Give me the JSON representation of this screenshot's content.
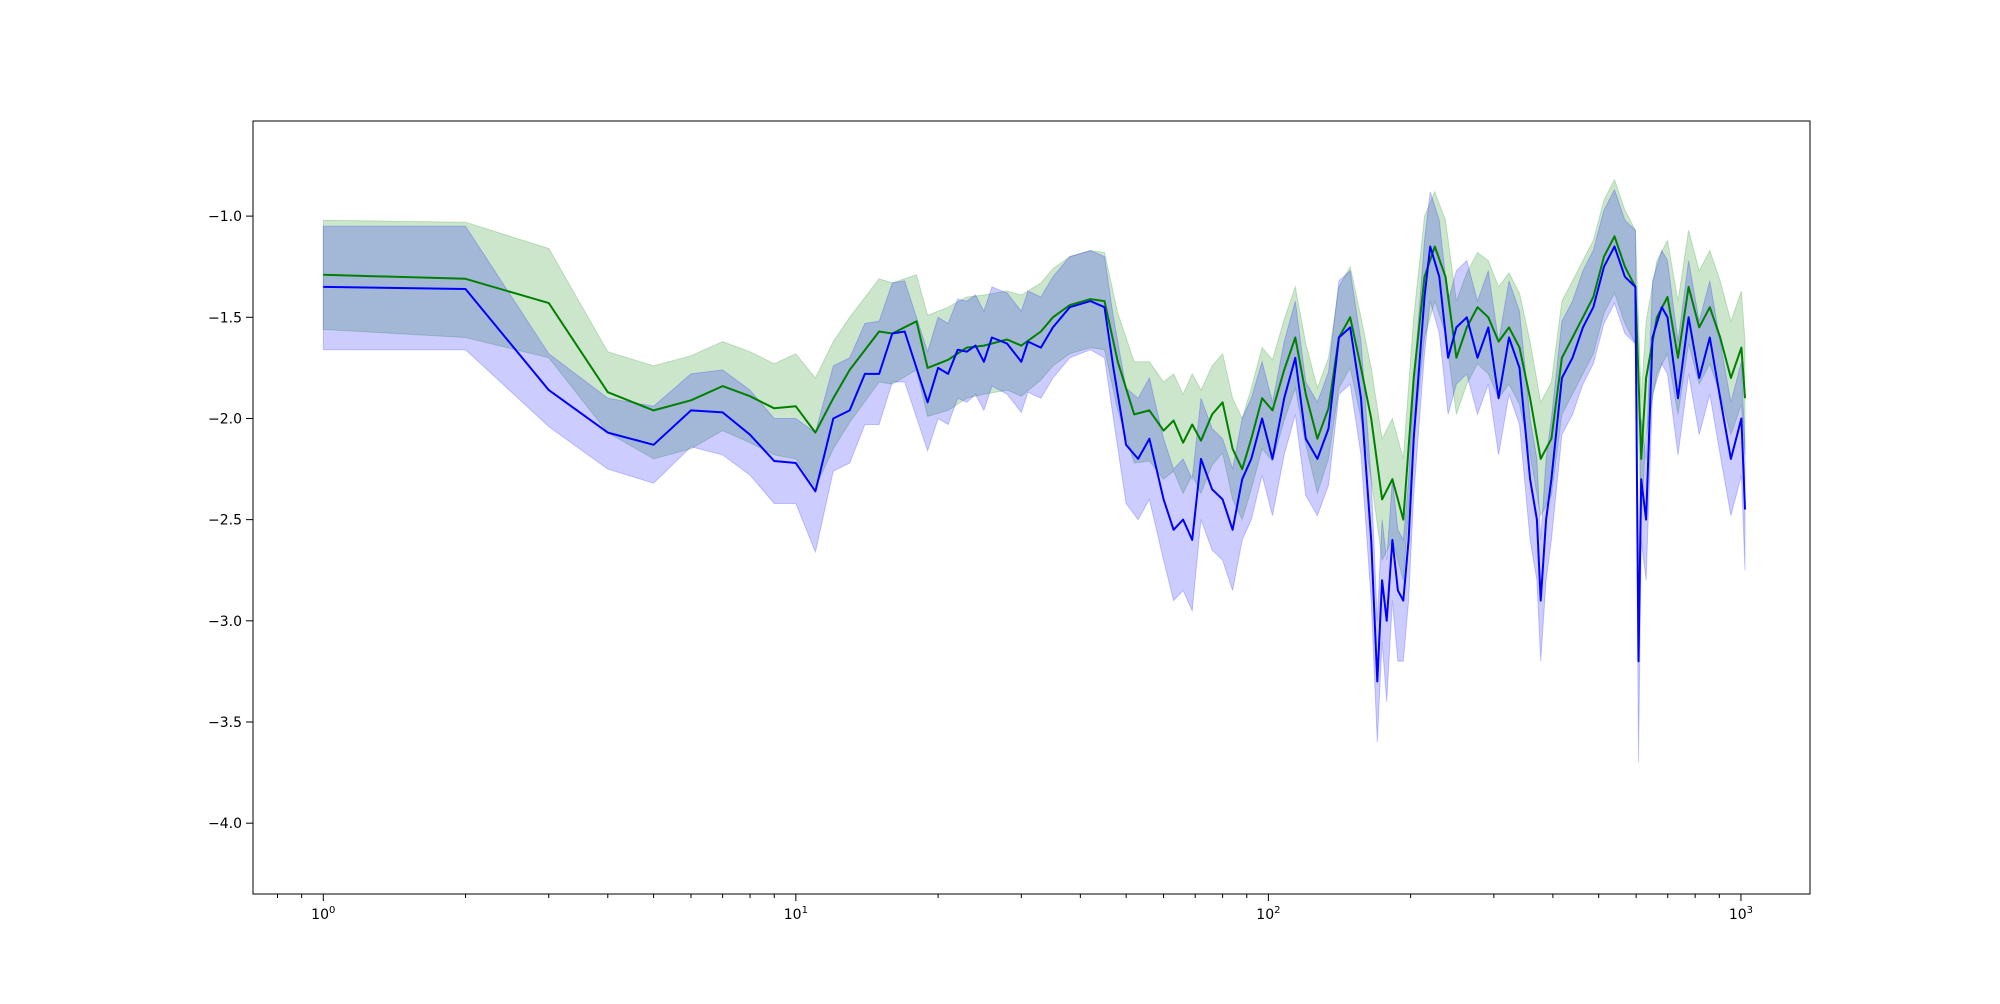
{
  "chart_data": {
    "type": "line",
    "title": "",
    "xlabel": "",
    "ylabel": "",
    "xscale": "log",
    "xlim": [
      0.71,
      1400
    ],
    "ylim": [
      -4.35,
      -0.53
    ],
    "grid": false,
    "legend": "none",
    "x_ticks": [
      {
        "base": "10",
        "exp": "0",
        "value": 1
      },
      {
        "base": "10",
        "exp": "1",
        "value": 10
      },
      {
        "base": "10",
        "exp": "2",
        "value": 100
      },
      {
        "base": "10",
        "exp": "3",
        "value": 1000
      }
    ],
    "y_ticks": [
      {
        "label": "−1.0",
        "value": -1.0
      },
      {
        "label": "−1.5",
        "value": -1.5
      },
      {
        "label": "−2.0",
        "value": -2.0
      },
      {
        "label": "−2.5",
        "value": -2.5
      },
      {
        "label": "−3.0",
        "value": -3.0
      },
      {
        "label": "−3.5",
        "value": -3.5
      },
      {
        "label": "−4.0",
        "value": -4.0
      }
    ],
    "series": [
      {
        "color": "#008000",
        "band_color": "#008000",
        "band_opacity": 0.2,
        "points": [
          [
            1,
            -1.29,
            -1.02,
            -1.56
          ],
          [
            2,
            -1.31,
            -1.03,
            -1.6
          ],
          [
            3,
            -1.43,
            -1.16,
            -1.7
          ],
          [
            4,
            -1.87,
            -1.67,
            -2.07
          ],
          [
            5,
            -1.96,
            -1.74,
            -2.2
          ],
          [
            6,
            -1.91,
            -1.69,
            -2.15
          ],
          [
            7,
            -1.84,
            -1.62,
            -2.06
          ],
          [
            8,
            -1.89,
            -1.67,
            -2.12
          ],
          [
            9,
            -1.95,
            -1.73,
            -2.18
          ],
          [
            10,
            -1.94,
            -1.68,
            -2.2
          ],
          [
            11,
            -2.07,
            -1.8,
            -2.34
          ],
          [
            12,
            -1.9,
            -1.62,
            -2.15
          ],
          [
            13,
            -1.76,
            -1.5,
            -2.02
          ],
          [
            15,
            -1.57,
            -1.31,
            -1.82
          ],
          [
            16,
            -1.58,
            -1.33,
            -1.83
          ],
          [
            18,
            -1.52,
            -1.29,
            -1.76
          ],
          [
            19,
            -1.75,
            -1.49,
            -1.99
          ],
          [
            21,
            -1.71,
            -1.45,
            -1.96
          ],
          [
            23,
            -1.65,
            -1.4,
            -1.9
          ],
          [
            25,
            -1.64,
            -1.39,
            -1.88
          ],
          [
            28,
            -1.61,
            -1.37,
            -1.86
          ],
          [
            30,
            -1.64,
            -1.39,
            -1.89
          ],
          [
            33,
            -1.57,
            -1.33,
            -1.81
          ],
          [
            35,
            -1.5,
            -1.26,
            -1.74
          ],
          [
            38,
            -1.44,
            -1.2,
            -1.68
          ],
          [
            42,
            -1.41,
            -1.17,
            -1.65
          ],
          [
            45,
            -1.42,
            -1.18,
            -1.66
          ],
          [
            48,
            -1.72,
            -1.48,
            -1.96
          ],
          [
            52,
            -1.98,
            -1.72,
            -2.22
          ],
          [
            56,
            -1.96,
            -1.72,
            -2.21
          ],
          [
            60,
            -2.06,
            -1.82,
            -2.3
          ],
          [
            63,
            -2.01,
            -1.78,
            -2.26
          ],
          [
            66,
            -2.12,
            -1.88,
            -2.37
          ],
          [
            69,
            -2.03,
            -1.78,
            -2.28
          ],
          [
            72,
            -2.11,
            -1.86,
            -2.37
          ],
          [
            76,
            -1.98,
            -1.74,
            -2.23
          ],
          [
            80,
            -1.92,
            -1.68,
            -2.17
          ],
          [
            84,
            -2.15,
            -1.9,
            -2.4
          ],
          [
            88,
            -2.25,
            -2.0,
            -2.5
          ],
          [
            92,
            -2.1,
            -1.85,
            -2.35
          ],
          [
            97,
            -1.9,
            -1.65,
            -2.15
          ],
          [
            102,
            -1.96,
            -1.71,
            -2.21
          ],
          [
            108,
            -1.76,
            -1.51,
            -2.01
          ],
          [
            114,
            -1.6,
            -1.35,
            -1.85
          ],
          [
            120,
            -1.88,
            -1.63,
            -2.13
          ],
          [
            127,
            -2.1,
            -1.85,
            -2.37
          ],
          [
            134,
            -1.95,
            -1.7,
            -2.2
          ],
          [
            141,
            -1.6,
            -1.35,
            -1.85
          ],
          [
            149,
            -1.5,
            -1.25,
            -1.75
          ],
          [
            157,
            -1.75,
            -1.5,
            -2.0
          ],
          [
            165,
            -2.0,
            -1.75,
            -2.3
          ],
          [
            174,
            -2.4,
            -2.1,
            -2.7
          ],
          [
            183,
            -2.3,
            -2.0,
            -2.6
          ],
          [
            193,
            -2.5,
            -2.2,
            -2.8
          ],
          [
            203,
            -1.8,
            -1.5,
            -2.1
          ],
          [
            214,
            -1.3,
            -1.0,
            -1.6
          ],
          [
            225,
            -1.15,
            -0.88,
            -1.42
          ],
          [
            237,
            -1.3,
            -1.02,
            -1.58
          ],
          [
            250,
            -1.7,
            -1.42,
            -1.98
          ],
          [
            263,
            -1.55,
            -1.28,
            -1.83
          ],
          [
            277,
            -1.45,
            -1.18,
            -1.73
          ],
          [
            292,
            -1.5,
            -1.22,
            -1.78
          ],
          [
            307,
            -1.62,
            -1.35,
            -1.9
          ],
          [
            323,
            -1.55,
            -1.28,
            -1.83
          ],
          [
            340,
            -1.65,
            -1.38,
            -1.93
          ],
          [
            358,
            -1.9,
            -1.62,
            -2.18
          ],
          [
            377,
            -2.2,
            -1.92,
            -2.48
          ],
          [
            397,
            -2.1,
            -1.82,
            -2.38
          ],
          [
            418,
            -1.7,
            -1.42,
            -1.98
          ],
          [
            440,
            -1.6,
            -1.32,
            -1.88
          ],
          [
            463,
            -1.5,
            -1.22,
            -1.78
          ],
          [
            487,
            -1.4,
            -1.12,
            -1.68
          ],
          [
            513,
            -1.2,
            -0.92,
            -1.48
          ],
          [
            540,
            -1.1,
            -0.82,
            -1.38
          ],
          [
            568,
            -1.25,
            -0.97,
            -1.53
          ],
          [
            598,
            -1.35,
            -1.07,
            -1.63
          ],
          [
            615,
            -2.2,
            -1.9,
            -2.5
          ],
          [
            630,
            -1.8,
            -1.52,
            -2.08
          ],
          [
            664,
            -1.5,
            -1.22,
            -1.78
          ],
          [
            699,
            -1.4,
            -1.12,
            -1.68
          ],
          [
            736,
            -1.7,
            -1.42,
            -1.98
          ],
          [
            775,
            -1.35,
            -1.07,
            -1.63
          ],
          [
            816,
            -1.55,
            -1.27,
            -1.83
          ],
          [
            859,
            -1.45,
            -1.17,
            -1.73
          ],
          [
            904,
            -1.6,
            -1.32,
            -1.88
          ],
          [
            952,
            -1.8,
            -1.52,
            -2.08
          ],
          [
            1002,
            -1.65,
            -1.37,
            -1.93
          ],
          [
            1020,
            -1.9,
            -1.62,
            -2.18
          ]
        ]
      },
      {
        "color": "#0000ff",
        "band_color": "#0000ff",
        "band_opacity": 0.2,
        "points": [
          [
            1,
            -1.35,
            -1.05,
            -1.66
          ],
          [
            2,
            -1.36,
            -1.05,
            -1.66
          ],
          [
            3,
            -1.86,
            -1.68,
            -2.04
          ],
          [
            4,
            -2.07,
            -1.9,
            -2.25
          ],
          [
            5,
            -2.13,
            -1.94,
            -2.32
          ],
          [
            6,
            -1.96,
            -1.78,
            -2.14
          ],
          [
            7,
            -1.97,
            -1.76,
            -2.18
          ],
          [
            8,
            -2.08,
            -1.86,
            -2.28
          ],
          [
            9,
            -2.21,
            -2.0,
            -2.42
          ],
          [
            10,
            -2.22,
            -2.0,
            -2.42
          ],
          [
            11,
            -2.36,
            -2.07,
            -2.66
          ],
          [
            12,
            -2.0,
            -1.74,
            -2.26
          ],
          [
            13,
            -1.96,
            -1.7,
            -2.22
          ],
          [
            14,
            -1.78,
            -1.53,
            -2.03
          ],
          [
            15,
            -1.78,
            -1.52,
            -2.03
          ],
          [
            16,
            -1.58,
            -1.33,
            -1.82
          ],
          [
            17,
            -1.57,
            -1.32,
            -1.82
          ],
          [
            19,
            -1.92,
            -1.67,
            -2.16
          ],
          [
            20,
            -1.75,
            -1.5,
            -2.0
          ],
          [
            21,
            -1.78,
            -1.53,
            -2.03
          ],
          [
            22,
            -1.66,
            -1.41,
            -1.9
          ],
          [
            23,
            -1.67,
            -1.42,
            -1.92
          ],
          [
            24,
            -1.64,
            -1.39,
            -1.88
          ],
          [
            25,
            -1.72,
            -1.47,
            -1.96
          ],
          [
            26,
            -1.6,
            -1.35,
            -1.84
          ],
          [
            28,
            -1.63,
            -1.38,
            -1.88
          ],
          [
            30,
            -1.72,
            -1.47,
            -1.97
          ],
          [
            31,
            -1.62,
            -1.37,
            -1.87
          ],
          [
            33,
            -1.65,
            -1.4,
            -1.9
          ],
          [
            35,
            -1.55,
            -1.3,
            -1.8
          ],
          [
            38,
            -1.45,
            -1.2,
            -1.7
          ],
          [
            42,
            -1.42,
            -1.17,
            -1.66
          ],
          [
            45,
            -1.45,
            -1.2,
            -1.7
          ],
          [
            47,
            -1.75,
            -1.5,
            -2.0
          ],
          [
            50,
            -2.13,
            -1.85,
            -2.42
          ],
          [
            53,
            -2.2,
            -1.9,
            -2.5
          ],
          [
            56,
            -2.1,
            -1.8,
            -2.4
          ],
          [
            60,
            -2.4,
            -2.1,
            -2.7
          ],
          [
            63,
            -2.55,
            -2.25,
            -2.9
          ],
          [
            66,
            -2.5,
            -2.2,
            -2.85
          ],
          [
            69,
            -2.6,
            -2.3,
            -2.95
          ],
          [
            72,
            -2.2,
            -1.9,
            -2.5
          ],
          [
            76,
            -2.35,
            -2.05,
            -2.65
          ],
          [
            80,
            -2.4,
            -2.1,
            -2.7
          ],
          [
            84,
            -2.55,
            -2.25,
            -2.85
          ],
          [
            88,
            -2.3,
            -2.0,
            -2.6
          ],
          [
            92,
            -2.2,
            -1.9,
            -2.5
          ],
          [
            97,
            -2.0,
            -1.72,
            -2.28
          ],
          [
            102,
            -2.2,
            -1.92,
            -2.48
          ],
          [
            108,
            -1.9,
            -1.62,
            -2.18
          ],
          [
            114,
            -1.7,
            -1.42,
            -1.98
          ],
          [
            120,
            -2.1,
            -1.82,
            -2.38
          ],
          [
            127,
            -2.2,
            -1.92,
            -2.48
          ],
          [
            134,
            -2.05,
            -1.77,
            -2.33
          ],
          [
            141,
            -1.6,
            -1.32,
            -1.88
          ],
          [
            149,
            -1.55,
            -1.27,
            -1.83
          ],
          [
            157,
            -1.9,
            -1.62,
            -2.18
          ],
          [
            165,
            -2.6,
            -2.3,
            -2.9
          ],
          [
            170,
            -3.3,
            -3.0,
            -3.6
          ],
          [
            174,
            -2.8,
            -2.5,
            -3.1
          ],
          [
            178,
            -3.0,
            -2.7,
            -3.4
          ],
          [
            183,
            -2.6,
            -2.3,
            -2.9
          ],
          [
            188,
            -2.85,
            -2.55,
            -3.2
          ],
          [
            193,
            -2.9,
            -2.6,
            -3.2
          ],
          [
            198,
            -2.6,
            -2.3,
            -2.9
          ],
          [
            203,
            -2.1,
            -1.82,
            -2.38
          ],
          [
            214,
            -1.4,
            -1.12,
            -1.68
          ],
          [
            220,
            -1.15,
            -0.88,
            -1.42
          ],
          [
            230,
            -1.3,
            -1.02,
            -1.58
          ],
          [
            240,
            -1.7,
            -1.42,
            -1.98
          ],
          [
            250,
            -1.55,
            -1.27,
            -1.83
          ],
          [
            263,
            -1.5,
            -1.22,
            -1.78
          ],
          [
            277,
            -1.7,
            -1.42,
            -1.98
          ],
          [
            292,
            -1.55,
            -1.27,
            -1.83
          ],
          [
            307,
            -1.9,
            -1.62,
            -2.18
          ],
          [
            323,
            -1.6,
            -1.32,
            -1.88
          ],
          [
            340,
            -1.75,
            -1.47,
            -2.03
          ],
          [
            358,
            -2.3,
            -2.0,
            -2.6
          ],
          [
            370,
            -2.5,
            -2.2,
            -2.8
          ],
          [
            377,
            -2.9,
            -2.6,
            -3.2
          ],
          [
            387,
            -2.5,
            -2.2,
            -2.8
          ],
          [
            397,
            -2.3,
            -2.0,
            -2.6
          ],
          [
            418,
            -1.8,
            -1.52,
            -2.08
          ],
          [
            440,
            -1.7,
            -1.42,
            -1.98
          ],
          [
            463,
            -1.55,
            -1.27,
            -1.83
          ],
          [
            487,
            -1.45,
            -1.17,
            -1.73
          ],
          [
            513,
            -1.25,
            -0.97,
            -1.53
          ],
          [
            540,
            -1.15,
            -0.87,
            -1.43
          ],
          [
            568,
            -1.3,
            -1.02,
            -1.58
          ],
          [
            598,
            -1.35,
            -1.07,
            -1.63
          ],
          [
            607,
            -3.2,
            -2.9,
            -3.7
          ],
          [
            615,
            -2.3,
            -2.0,
            -2.6
          ],
          [
            630,
            -2.5,
            -2.2,
            -2.8
          ],
          [
            650,
            -1.6,
            -1.32,
            -1.88
          ],
          [
            680,
            -1.45,
            -1.17,
            -1.73
          ],
          [
            699,
            -1.5,
            -1.22,
            -1.78
          ],
          [
            736,
            -1.9,
            -1.62,
            -2.18
          ],
          [
            775,
            -1.5,
            -1.22,
            -1.78
          ],
          [
            816,
            -1.8,
            -1.52,
            -2.08
          ],
          [
            859,
            -1.6,
            -1.32,
            -1.88
          ],
          [
            904,
            -1.9,
            -1.62,
            -2.18
          ],
          [
            952,
            -2.2,
            -1.92,
            -2.48
          ],
          [
            1002,
            -2.0,
            -1.72,
            -2.28
          ],
          [
            1020,
            -2.45,
            -2.15,
            -2.75
          ]
        ]
      }
    ]
  }
}
